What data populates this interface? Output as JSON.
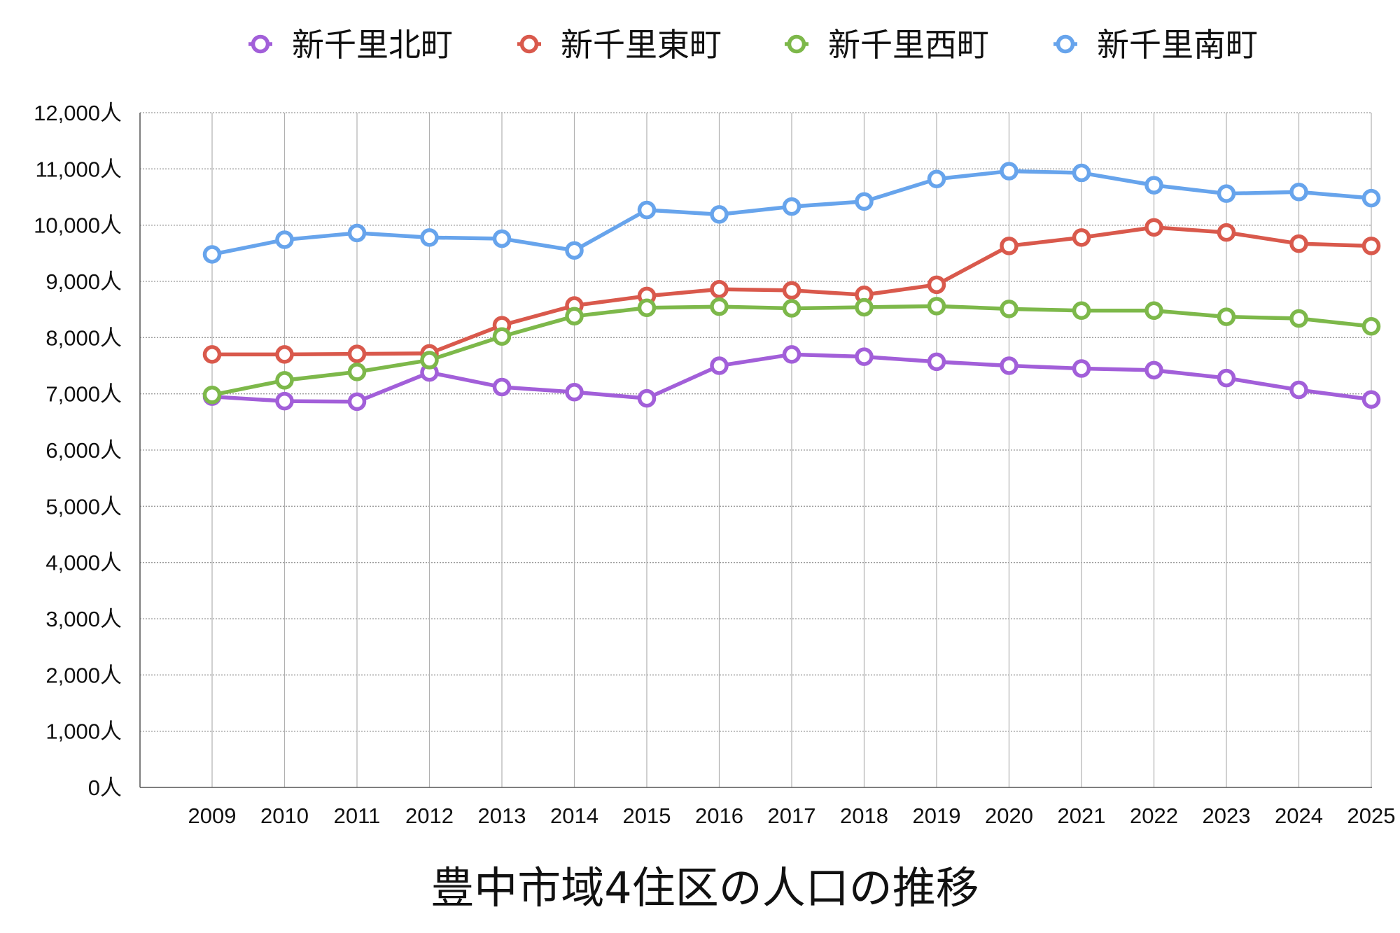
{
  "chart_data": {
    "type": "line",
    "title": "豊中市域4住区の人口の推移",
    "xlabel": "",
    "ylabel": "",
    "x": [
      "2009",
      "2010",
      "2011",
      "2012",
      "2013",
      "2014",
      "2015",
      "2016",
      "2017",
      "2018",
      "2019",
      "2020",
      "2021",
      "2022",
      "2023",
      "2024",
      "2025"
    ],
    "y_ticks": [
      "0人",
      "1,000人",
      "2,000人",
      "3,000人",
      "4,000人",
      "5,000人",
      "6,000人",
      "7,000人",
      "8,000人",
      "9,000人",
      "10,000人",
      "11,000人",
      "12,000人"
    ],
    "ylim": [
      0,
      12000
    ],
    "grid": true,
    "legend_position": "top",
    "marker": "hollow-circle",
    "series": [
      {
        "name": "新千里北町",
        "color": "#a25fd9",
        "values": [
          6950,
          6870,
          6860,
          7380,
          7120,
          7030,
          6920,
          7500,
          7700,
          7660,
          7570,
          7500,
          7450,
          7420,
          7280,
          7070,
          6900
        ]
      },
      {
        "name": "新千里東町",
        "color": "#d9594c",
        "values": [
          7700,
          7700,
          7710,
          7720,
          8220,
          8570,
          8740,
          8860,
          8840,
          8760,
          8940,
          9630,
          9780,
          9960,
          9870,
          9670,
          9630
        ]
      },
      {
        "name": "新千里西町",
        "color": "#7db84a",
        "values": [
          6980,
          7240,
          7390,
          7600,
          8020,
          8380,
          8530,
          8550,
          8520,
          8540,
          8560,
          8510,
          8480,
          8480,
          8370,
          8340,
          8200
        ]
      },
      {
        "name": "新千里南町",
        "color": "#67a4ec",
        "values": [
          9480,
          9740,
          9860,
          9780,
          9760,
          9550,
          10270,
          10190,
          10330,
          10420,
          10820,
          10960,
          10930,
          10710,
          10560,
          10590,
          10480
        ]
      }
    ]
  }
}
